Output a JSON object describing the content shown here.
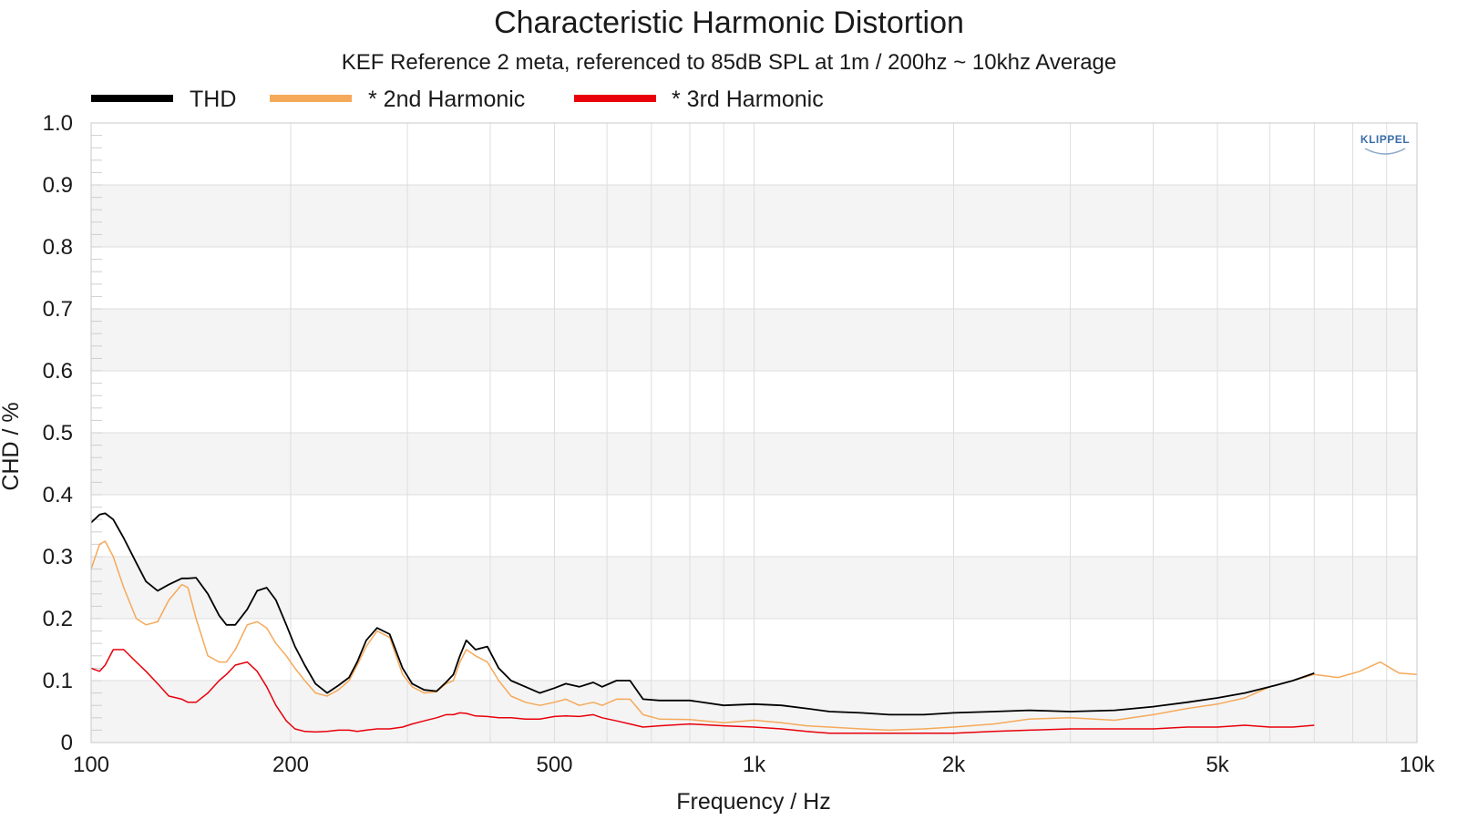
{
  "chart_data": {
    "type": "line",
    "title": "Characteristic Harmonic Distortion",
    "subtitle": "KEF Reference 2 meta, referenced to 85dB SPL at 1m / 200hz ~ 10khz Average",
    "xlabel": "Frequency / Hz",
    "ylabel": "CHD / %",
    "x_scale": "log",
    "xlim": [
      100,
      10000
    ],
    "ylim": [
      0,
      1.0
    ],
    "x_ticks": [
      {
        "value": 100,
        "label": "100"
      },
      {
        "value": 200,
        "label": "200"
      },
      {
        "value": 500,
        "label": "500"
      },
      {
        "value": 1000,
        "label": "1k"
      },
      {
        "value": 2000,
        "label": "2k"
      },
      {
        "value": 5000,
        "label": "5k"
      },
      {
        "value": 10000,
        "label": "10k"
      }
    ],
    "y_ticks": [
      {
        "value": 0,
        "label": "0"
      },
      {
        "value": 0.1,
        "label": "0.1"
      },
      {
        "value": 0.2,
        "label": "0.2"
      },
      {
        "value": 0.3,
        "label": "0.3"
      },
      {
        "value": 0.4,
        "label": "0.4"
      },
      {
        "value": 0.5,
        "label": "0.5"
      },
      {
        "value": 0.6,
        "label": "0.6"
      },
      {
        "value": 0.7,
        "label": "0.7"
      },
      {
        "value": 0.8,
        "label": "0.8"
      },
      {
        "value": 0.9,
        "label": "0.9"
      },
      {
        "value": 1.0,
        "label": "1.0"
      }
    ],
    "grid": true,
    "legend_position": "top-left",
    "logo": "KLIPPEL",
    "series": [
      {
        "name": "THD",
        "color": "#000000",
        "x": [
          100,
          103,
          105,
          108,
          112,
          117,
          121,
          126,
          131,
          137,
          140,
          144,
          150,
          156,
          160,
          165,
          172,
          178,
          184,
          190,
          197,
          203,
          210,
          218,
          227,
          236,
          245,
          252,
          260,
          270,
          282,
          295,
          305,
          318,
          332,
          343,
          352,
          360,
          368,
          380,
          396,
          412,
          430,
          452,
          475,
          500,
          520,
          545,
          572,
          590,
          620,
          650,
          680,
          720,
          800,
          900,
          1000,
          1100,
          1200,
          1300,
          1450,
          1600,
          1800,
          2000,
          2300,
          2600,
          3000,
          3500,
          4000,
          4500,
          5000,
          5500,
          6000,
          6500,
          7000
        ],
        "y": [
          0.355,
          0.368,
          0.37,
          0.36,
          0.33,
          0.29,
          0.26,
          0.245,
          0.255,
          0.265,
          0.265,
          0.266,
          0.24,
          0.205,
          0.19,
          0.19,
          0.215,
          0.245,
          0.25,
          0.23,
          0.19,
          0.155,
          0.125,
          0.095,
          0.08,
          0.092,
          0.105,
          0.13,
          0.165,
          0.185,
          0.175,
          0.12,
          0.095,
          0.085,
          0.083,
          0.097,
          0.11,
          0.14,
          0.165,
          0.15,
          0.155,
          0.12,
          0.1,
          0.09,
          0.08,
          0.088,
          0.095,
          0.09,
          0.097,
          0.09,
          0.1,
          0.1,
          0.07,
          0.068,
          0.068,
          0.06,
          0.062,
          0.06,
          0.055,
          0.05,
          0.048,
          0.045,
          0.045,
          0.048,
          0.05,
          0.052,
          0.05,
          0.052,
          0.058,
          0.065,
          0.072,
          0.08,
          0.09,
          0.1,
          0.112
        ]
      },
      {
        "name": "* 2nd Harmonic",
        "color": "#f5a95a",
        "x": [
          100,
          103,
          105,
          108,
          112,
          117,
          121,
          126,
          131,
          137,
          140,
          144,
          150,
          156,
          160,
          165,
          172,
          178,
          184,
          190,
          197,
          203,
          210,
          218,
          227,
          236,
          245,
          252,
          260,
          270,
          282,
          295,
          305,
          318,
          332,
          343,
          352,
          360,
          368,
          380,
          396,
          412,
          430,
          452,
          475,
          500,
          520,
          545,
          572,
          590,
          620,
          650,
          680,
          720,
          800,
          900,
          1000,
          1100,
          1200,
          1300,
          1450,
          1600,
          1800,
          2000,
          2300,
          2600,
          3000,
          3500,
          4000,
          4500,
          5000,
          5500,
          6000,
          6500,
          7000,
          7600,
          8200,
          8800,
          9400,
          10000
        ],
        "y": [
          0.28,
          0.32,
          0.325,
          0.3,
          0.25,
          0.2,
          0.19,
          0.195,
          0.23,
          0.255,
          0.25,
          0.2,
          0.14,
          0.13,
          0.13,
          0.15,
          0.19,
          0.195,
          0.185,
          0.16,
          0.14,
          0.12,
          0.1,
          0.08,
          0.075,
          0.085,
          0.1,
          0.125,
          0.155,
          0.18,
          0.17,
          0.11,
          0.09,
          0.08,
          0.082,
          0.095,
          0.1,
          0.13,
          0.15,
          0.14,
          0.13,
          0.1,
          0.075,
          0.065,
          0.06,
          0.065,
          0.07,
          0.06,
          0.065,
          0.06,
          0.07,
          0.07,
          0.045,
          0.038,
          0.037,
          0.032,
          0.036,
          0.032,
          0.027,
          0.025,
          0.022,
          0.02,
          0.022,
          0.025,
          0.03,
          0.038,
          0.04,
          0.036,
          0.045,
          0.055,
          0.062,
          0.072,
          0.09,
          0.1,
          0.11,
          0.105,
          0.115,
          0.13,
          0.112,
          0.11
        ]
      },
      {
        "name": "* 3rd Harmonic",
        "color": "#e8000b",
        "x": [
          100,
          103,
          105,
          108,
          112,
          117,
          121,
          126,
          131,
          137,
          140,
          144,
          150,
          156,
          160,
          165,
          172,
          178,
          184,
          190,
          197,
          203,
          210,
          218,
          227,
          236,
          245,
          252,
          260,
          270,
          282,
          295,
          305,
          318,
          332,
          343,
          352,
          360,
          368,
          380,
          396,
          412,
          430,
          452,
          475,
          500,
          520,
          545,
          572,
          590,
          620,
          650,
          680,
          720,
          800,
          900,
          1000,
          1100,
          1200,
          1300,
          1450,
          1600,
          1800,
          2000,
          2300,
          2600,
          3000,
          3500,
          4000,
          4500,
          5000,
          5500,
          6000,
          6500,
          7000
        ],
        "y": [
          0.12,
          0.115,
          0.125,
          0.15,
          0.15,
          0.13,
          0.115,
          0.095,
          0.075,
          0.07,
          0.065,
          0.065,
          0.08,
          0.1,
          0.11,
          0.125,
          0.13,
          0.115,
          0.09,
          0.06,
          0.035,
          0.022,
          0.018,
          0.017,
          0.018,
          0.02,
          0.02,
          0.018,
          0.02,
          0.022,
          0.022,
          0.025,
          0.03,
          0.035,
          0.04,
          0.045,
          0.045,
          0.048,
          0.047,
          0.043,
          0.042,
          0.04,
          0.04,
          0.038,
          0.038,
          0.042,
          0.043,
          0.042,
          0.045,
          0.04,
          0.035,
          0.03,
          0.025,
          0.027,
          0.03,
          0.027,
          0.025,
          0.022,
          0.018,
          0.015,
          0.015,
          0.015,
          0.015,
          0.015,
          0.018,
          0.02,
          0.022,
          0.022,
          0.022,
          0.025,
          0.025,
          0.028,
          0.025,
          0.025,
          0.028
        ]
      }
    ]
  }
}
